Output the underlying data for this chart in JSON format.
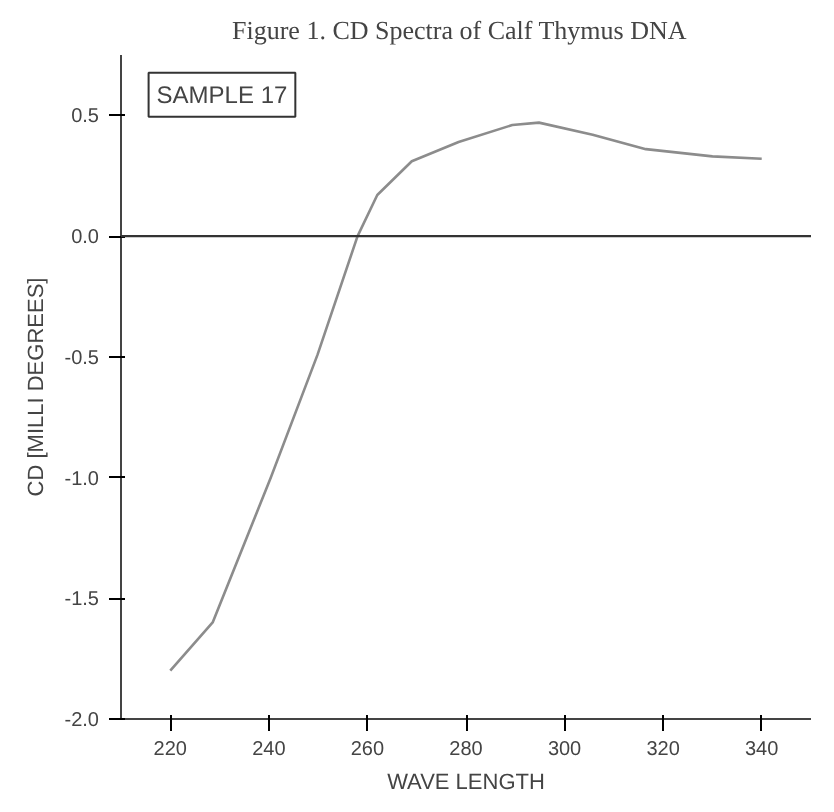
{
  "chart_data": {
    "type": "line",
    "title": "Figure 1.   CD Spectra of Calf Thymus DNA",
    "xlabel": "WAVE LENGTH",
    "ylabel": "CD [MILLI DEGREES]",
    "annotations": [
      "SAMPLE 17"
    ],
    "x": [
      220,
      228.6,
      240.4,
      249.9,
      258,
      262,
      269,
      278.5,
      289.4,
      294.8,
      305.7,
      316.5,
      330,
      340
    ],
    "series": [
      {
        "color": "#8c8c8c",
        "values": [
          -1.8,
          -1.6,
          -1.0,
          -0.49,
          0,
          0.17,
          0.31,
          0.39,
          0.46,
          0.47,
          0.42,
          0.36,
          0.33,
          0.32
        ]
      }
    ],
    "xlim": [
      210,
      350
    ],
    "ylim": [
      -2.0,
      0.75
    ],
    "xticks": [
      220,
      240,
      260,
      280,
      300,
      320,
      340
    ],
    "yticks": [
      {
        "value": -2.0,
        "label": "-2.0"
      },
      {
        "value": -1.5,
        "label": "-1.5"
      },
      {
        "value": -1.0,
        "label": "-1.0"
      },
      {
        "value": -0.5,
        "label": "-0.5"
      },
      {
        "value": 0,
        "label": "0.0"
      },
      {
        "value": 0.5,
        "label": "0.5"
      }
    ],
    "ref_lines": [
      {
        "axis": "y",
        "value": 0,
        "color": "#333333"
      }
    ],
    "grid": false,
    "marker": "none",
    "line_style": "solid"
  }
}
